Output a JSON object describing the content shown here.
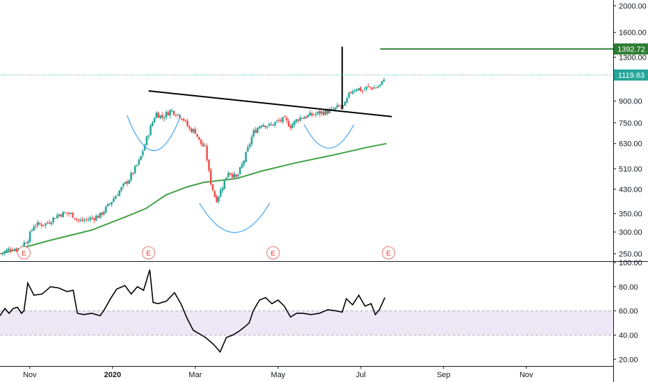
{
  "chart_data": [
    {
      "type": "candlestick",
      "panel": "price",
      "y_scale": "log",
      "ylim": [
        235,
        2100
      ],
      "y_ticks": [
        "250.00",
        "300.00",
        "350.00",
        "430.00",
        "510.00",
        "630.00",
        "750.00",
        "900.00",
        "1300.00",
        "1600.00",
        "2000.00"
      ],
      "y_tick_values": [
        250,
        300,
        350,
        430,
        510,
        630,
        750,
        900,
        1300,
        1600,
        2000
      ],
      "x_ticks": [
        "Nov",
        "2020",
        "Mar",
        "May",
        "Jul",
        "Sep",
        "Nov"
      ],
      "x_tick_months": [
        1,
        3,
        5,
        7,
        9,
        11,
        13
      ],
      "x_range_months": [
        0.28,
        15.1
      ],
      "current_price": {
        "label": "1119.63",
        "value": 1119.63,
        "color": "#26a69a"
      },
      "target_price": {
        "label": "1392.72",
        "value": 1392.72,
        "color": "#2e7d32"
      },
      "earnings_markers": [
        {
          "label": "E",
          "month": 0.86
        },
        {
          "label": "E",
          "month": 3.87
        },
        {
          "label": "E",
          "month": 6.88
        },
        {
          "label": "E",
          "month": 9.67
        }
      ],
      "candle_path": [
        [
          0.3,
          250
        ],
        [
          0.55,
          262
        ],
        [
          0.7,
          258
        ],
        [
          0.95,
          282
        ],
        [
          1.1,
          318
        ],
        [
          1.4,
          322
        ],
        [
          1.7,
          348
        ],
        [
          1.9,
          352
        ],
        [
          2.05,
          345
        ],
        [
          2.2,
          328
        ],
        [
          2.45,
          335
        ],
        [
          2.7,
          345
        ],
        [
          2.9,
          375
        ],
        [
          3.1,
          412
        ],
        [
          3.4,
          468
        ],
        [
          3.65,
          545
        ],
        [
          3.8,
          640
        ],
        [
          3.9,
          710
        ],
        [
          4.05,
          815
        ],
        [
          4.2,
          785
        ],
        [
          4.4,
          832
        ],
        [
          4.55,
          812
        ],
        [
          4.7,
          780
        ],
        [
          4.85,
          712
        ],
        [
          5.0,
          698
        ],
        [
          5.1,
          642
        ],
        [
          5.25,
          600
        ],
        [
          5.35,
          470
        ],
        [
          5.5,
          390
        ],
        [
          5.6,
          420
        ],
        [
          5.8,
          500
        ],
        [
          6.0,
          470
        ],
        [
          6.2,
          560
        ],
        [
          6.4,
          690
        ],
        [
          6.6,
          745
        ],
        [
          6.8,
          730
        ],
        [
          7.0,
          760
        ],
        [
          7.15,
          770
        ],
        [
          7.3,
          730
        ],
        [
          7.5,
          780
        ],
        [
          7.8,
          800
        ],
        [
          8.05,
          818
        ],
        [
          8.3,
          830
        ],
        [
          8.45,
          855
        ],
        [
          8.6,
          860
        ],
        [
          8.75,
          975
        ],
        [
          8.9,
          1005
        ],
        [
          9.05,
          980
        ],
        [
          9.15,
          1010
        ],
        [
          9.35,
          1005
        ],
        [
          9.5,
          1035
        ],
        [
          9.58,
          1120
        ]
      ],
      "ma_line": {
        "color": "#43a047",
        "points": [
          [
            0.3,
            250
          ],
          [
            1.5,
            280
          ],
          [
            2.5,
            305
          ],
          [
            3.3,
            340
          ],
          [
            3.8,
            365
          ],
          [
            4.3,
            410
          ],
          [
            4.8,
            438
          ],
          [
            5.2,
            455
          ],
          [
            6.0,
            470
          ],
          [
            6.6,
            500
          ],
          [
            7.4,
            535
          ],
          [
            8.4,
            575
          ],
          [
            9.15,
            610
          ],
          [
            9.62,
            630
          ]
        ]
      },
      "annotations": {
        "trendline": {
          "color": "#000000",
          "points": [
            [
              3.87,
              980
            ],
            [
              9.75,
              790
            ]
          ]
        },
        "vertical_line": {
          "color": "#000000",
          "month": 8.55,
          "from": 840,
          "to": 1420
        },
        "target_line": {
          "color": "#2e7d32",
          "from_month": 9.47,
          "to_month": 15.1,
          "value": 1392.72
        },
        "arcs": [
          {
            "color": "#42a5f5",
            "center_month": 4.0,
            "center_value": 585,
            "half_width_months": 0.65,
            "depth": 0.12
          },
          {
            "color": "#42a5f5",
            "center_month": 5.95,
            "center_value": 295,
            "half_width_months": 0.85,
            "depth": 0.1
          },
          {
            "color": "#42a5f5",
            "center_month": 8.23,
            "center_value": 600,
            "half_width_months": 0.6,
            "depth": 0.08
          }
        ]
      }
    },
    {
      "type": "line",
      "panel": "rsi",
      "ylim": [
        15,
        100
      ],
      "y_ticks": [
        "20.00",
        "40.00",
        "60.00",
        "80.00",
        "100.00"
      ],
      "y_tick_values": [
        20,
        40,
        60,
        80,
        100
      ],
      "band": {
        "low": 40,
        "high": 60,
        "color": "#ede7f6"
      },
      "series": [
        {
          "color": "#000000",
          "points": [
            [
              0.28,
              56
            ],
            [
              0.4,
              62
            ],
            [
              0.5,
              58
            ],
            [
              0.6,
              62
            ],
            [
              0.7,
              63
            ],
            [
              0.8,
              58
            ],
            [
              0.86,
              60
            ],
            [
              0.95,
              83
            ],
            [
              1.1,
              73
            ],
            [
              1.3,
              74
            ],
            [
              1.5,
              80
            ],
            [
              1.7,
              79
            ],
            [
              1.9,
              76
            ],
            [
              2.05,
              77
            ],
            [
              2.15,
              58
            ],
            [
              2.3,
              57
            ],
            [
              2.5,
              58
            ],
            [
              2.7,
              56
            ],
            [
              2.8,
              61
            ],
            [
              2.95,
              70
            ],
            [
              3.1,
              78
            ],
            [
              3.3,
              81
            ],
            [
              3.45,
              74
            ],
            [
              3.6,
              80
            ],
            [
              3.75,
              77
            ],
            [
              3.9,
              94
            ],
            [
              3.98,
              67
            ],
            [
              4.1,
              66
            ],
            [
              4.3,
              68
            ],
            [
              4.5,
              75
            ],
            [
              4.65,
              66
            ],
            [
              4.8,
              54
            ],
            [
              4.95,
              44
            ],
            [
              5.1,
              41
            ],
            [
              5.25,
              38
            ],
            [
              5.45,
              32
            ],
            [
              5.6,
              26
            ],
            [
              5.75,
              38
            ],
            [
              5.9,
              40
            ],
            [
              6.05,
              43
            ],
            [
              6.2,
              47
            ],
            [
              6.3,
              50
            ],
            [
              6.4,
              60
            ],
            [
              6.55,
              69
            ],
            [
              6.7,
              71
            ],
            [
              6.85,
              66
            ],
            [
              7.0,
              69
            ],
            [
              7.15,
              64
            ],
            [
              7.3,
              55
            ],
            [
              7.45,
              58
            ],
            [
              7.6,
              58
            ],
            [
              7.8,
              57
            ],
            [
              8.0,
              58
            ],
            [
              8.2,
              61
            ],
            [
              8.4,
              60
            ],
            [
              8.55,
              59
            ],
            [
              8.65,
              70
            ],
            [
              8.8,
              65
            ],
            [
              8.95,
              73
            ],
            [
              9.1,
              64
            ],
            [
              9.25,
              66
            ],
            [
              9.35,
              57
            ],
            [
              9.45,
              61
            ],
            [
              9.58,
              71
            ]
          ]
        }
      ]
    }
  ]
}
